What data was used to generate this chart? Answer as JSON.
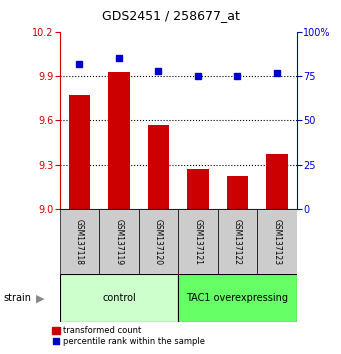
{
  "title": "GDS2451 / 258677_at",
  "samples": [
    "GSM137118",
    "GSM137119",
    "GSM137120",
    "GSM137121",
    "GSM137122",
    "GSM137123"
  ],
  "red_values": [
    9.77,
    9.93,
    9.57,
    9.27,
    9.22,
    9.37
  ],
  "blue_values": [
    82,
    85,
    78,
    75,
    75,
    77
  ],
  "ylim_left": [
    9.0,
    10.2
  ],
  "ylim_right": [
    0,
    100
  ],
  "yticks_left": [
    9.0,
    9.3,
    9.6,
    9.9,
    10.2
  ],
  "yticks_right": [
    0,
    25,
    50,
    75,
    100
  ],
  "groups": [
    {
      "label": "control",
      "indices": [
        0,
        1,
        2
      ],
      "color": "#ccffcc"
    },
    {
      "label": "TAC1 overexpressing",
      "indices": [
        3,
        4,
        5
      ],
      "color": "#66ff66"
    }
  ],
  "red_color": "#cc0000",
  "blue_color": "#0000cc",
  "bar_base": 9.0,
  "left_axis_color": "#cc0000",
  "right_axis_color": "#0000cc",
  "tick_box_color": "#cccccc",
  "legend_red_label": "transformed count",
  "legend_blue_label": "percentile rank within the sample",
  "strain_label": "strain"
}
